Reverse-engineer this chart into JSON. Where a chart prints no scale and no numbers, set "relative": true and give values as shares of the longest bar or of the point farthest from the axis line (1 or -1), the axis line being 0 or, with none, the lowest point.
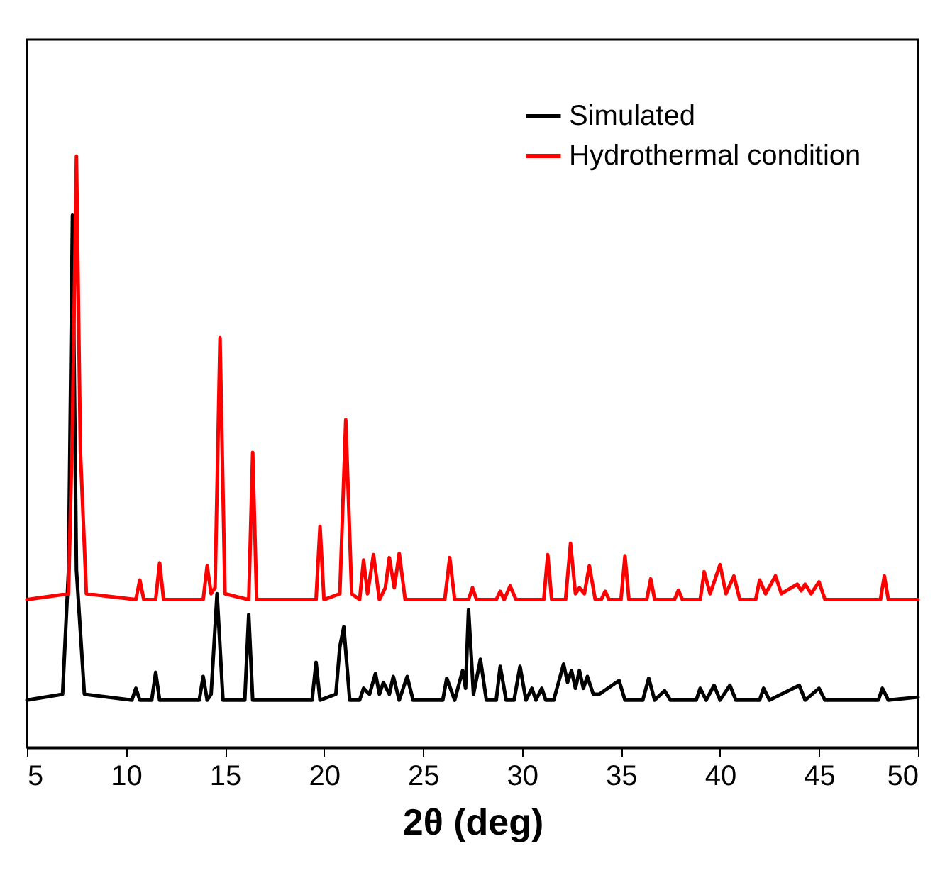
{
  "chart_data": {
    "type": "line",
    "xlabel": "2θ (deg)",
    "relative": true,
    "xlim": [
      5,
      50
    ],
    "xticks": [
      5,
      10,
      15,
      20,
      25,
      30,
      35,
      40,
      45,
      50
    ],
    "grid": false,
    "legend": "top right",
    "marker": "none",
    "line_style": "solid",
    "series": [
      {
        "name": "Simulated",
        "color": "#000000",
        "x": [
          5,
          6.8,
          7.1,
          7.3,
          7.5,
          7.9,
          10.3,
          10.5,
          10.7,
          11.3,
          11.5,
          11.7,
          13.7,
          13.9,
          14.1,
          14.3,
          14.6,
          14.9,
          16.0,
          16.2,
          16.4,
          19.4,
          19.6,
          19.8,
          20.6,
          20.8,
          21.0,
          21.3,
          21.8,
          22.0,
          22.3,
          22.6,
          22.8,
          23.0,
          23.3,
          23.5,
          23.8,
          24.2,
          24.5,
          26.0,
          26.2,
          26.6,
          27.0,
          27.15,
          27.3,
          27.55,
          27.9,
          28.2,
          28.7,
          28.9,
          29.2,
          29.6,
          29.9,
          30.2,
          30.5,
          30.7,
          31.0,
          31.2,
          31.6,
          32.1,
          32.3,
          32.5,
          32.7,
          32.9,
          33.1,
          33.3,
          33.6,
          33.9,
          34.9,
          35.2,
          36.1,
          36.4,
          36.7,
          37.2,
          37.5,
          38.8,
          39.0,
          39.3,
          39.7,
          40.0,
          40.5,
          40.8,
          42.0,
          42.2,
          42.5,
          44.0,
          44.3,
          45.0,
          45.3,
          48.0,
          48.2,
          48.5,
          50
        ],
        "values": [
          0.08,
          0.09,
          0.3,
          0.9,
          0.3,
          0.09,
          0.08,
          0.1,
          0.08,
          0.08,
          0.127,
          0.08,
          0.08,
          0.12,
          0.08,
          0.09,
          0.26,
          0.08,
          0.08,
          0.225,
          0.08,
          0.08,
          0.144,
          0.08,
          0.09,
          0.17,
          0.204,
          0.08,
          0.08,
          0.1,
          0.09,
          0.125,
          0.09,
          0.11,
          0.09,
          0.12,
          0.08,
          0.12,
          0.08,
          0.08,
          0.117,
          0.08,
          0.13,
          0.1,
          0.233,
          0.09,
          0.149,
          0.08,
          0.08,
          0.137,
          0.08,
          0.08,
          0.137,
          0.08,
          0.1,
          0.08,
          0.1,
          0.08,
          0.08,
          0.141,
          0.11,
          0.13,
          0.1,
          0.13,
          0.1,
          0.12,
          0.09,
          0.09,
          0.113,
          0.08,
          0.08,
          0.117,
          0.08,
          0.096,
          0.08,
          0.08,
          0.1,
          0.08,
          0.105,
          0.08,
          0.105,
          0.08,
          0.08,
          0.1,
          0.08,
          0.105,
          0.08,
          0.1,
          0.08,
          0.08,
          0.1,
          0.08,
          0.085
        ]
      },
      {
        "name": "Hydrothermal condition",
        "color": "#ff0000",
        "x": [
          5,
          7.1,
          7.3,
          7.5,
          7.7,
          8.0,
          10.5,
          10.7,
          10.9,
          11.5,
          11.7,
          11.9,
          13.9,
          14.1,
          14.3,
          14.5,
          14.75,
          15.0,
          16.2,
          16.4,
          16.6,
          19.6,
          19.8,
          20.0,
          20.8,
          21.1,
          21.4,
          21.8,
          22.0,
          22.2,
          22.5,
          22.8,
          23.1,
          23.3,
          23.55,
          23.8,
          24.1,
          26.1,
          26.35,
          26.6,
          27.3,
          27.5,
          27.7,
          28.7,
          28.9,
          29.1,
          29.4,
          29.7,
          31.1,
          31.3,
          31.5,
          32.2,
          32.45,
          32.7,
          32.9,
          33.15,
          33.4,
          33.7,
          34.0,
          34.2,
          34.4,
          35.0,
          35.2,
          35.4,
          36.3,
          36.5,
          36.7,
          37.7,
          37.9,
          38.1,
          39.0,
          39.2,
          39.5,
          40.0,
          40.3,
          40.7,
          41.0,
          41.8,
          42.0,
          42.3,
          42.8,
          43.1,
          43.9,
          44.1,
          44.3,
          44.6,
          45.0,
          45.3,
          48.1,
          48.3,
          48.5,
          50
        ],
        "values": [
          0.25,
          0.26,
          0.55,
          1.0,
          0.5,
          0.26,
          0.25,
          0.283,
          0.25,
          0.25,
          0.312,
          0.25,
          0.25,
          0.307,
          0.26,
          0.27,
          0.693,
          0.26,
          0.25,
          0.499,
          0.25,
          0.25,
          0.374,
          0.25,
          0.26,
          0.554,
          0.26,
          0.25,
          0.317,
          0.26,
          0.326,
          0.25,
          0.27,
          0.321,
          0.27,
          0.328,
          0.25,
          0.25,
          0.321,
          0.25,
          0.25,
          0.27,
          0.25,
          0.25,
          0.264,
          0.25,
          0.273,
          0.25,
          0.25,
          0.326,
          0.25,
          0.25,
          0.345,
          0.26,
          0.27,
          0.26,
          0.307,
          0.25,
          0.25,
          0.264,
          0.25,
          0.25,
          0.324,
          0.25,
          0.25,
          0.285,
          0.25,
          0.25,
          0.266,
          0.25,
          0.25,
          0.297,
          0.26,
          0.309,
          0.26,
          0.29,
          0.25,
          0.25,
          0.283,
          0.26,
          0.29,
          0.26,
          0.276,
          0.265,
          0.276,
          0.26,
          0.28,
          0.25,
          0.25,
          0.29,
          0.25,
          0.25
        ]
      }
    ]
  }
}
